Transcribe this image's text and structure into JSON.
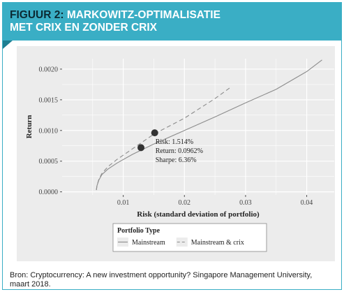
{
  "header": {
    "figure_label": "FIGUUR 2:",
    "title_line1": "MARKOWITZ-OPTIMALISATIE",
    "title_line2": "MET CRIX EN ZONDER CRIX"
  },
  "source": "Bron: Cryptocurrency: A new investment opportunity? Singapore Management University, maart 2018.",
  "colors": {
    "banner": "#3aaec5",
    "banner_dark": "#1f7f92",
    "figure_label": "#0b2a33",
    "plot_bg": "#ececec",
    "grid": "#ffffff",
    "series": "#8c8c8c",
    "point": "#333333"
  },
  "chart_data": {
    "type": "line",
    "xlabel": "Risk (standard deviation of portfolio)",
    "ylabel": "Return",
    "xlim": [
      0.0,
      0.0445
    ],
    "ylim": [
      -5e-05,
      0.00217
    ],
    "xticks": [
      0.01,
      0.02,
      0.03,
      0.04
    ],
    "xtick_labels": [
      "0.01",
      "0.02",
      "0.03",
      "0.04"
    ],
    "yticks": [
      0.0,
      0.0005,
      0.001,
      0.0015,
      0.002
    ],
    "ytick_labels": [
      "0.0000",
      "0.0005",
      "0.0010",
      "0.0015",
      "0.0020"
    ],
    "grid": true,
    "legend": {
      "title": "Portfolio Type",
      "position": "bottom"
    },
    "series": [
      {
        "name": "Mainstream",
        "style": "solid",
        "x": [
          0.0056,
          0.0057,
          0.006,
          0.0065,
          0.0075,
          0.009,
          0.0115,
          0.015,
          0.02,
          0.025,
          0.03,
          0.035,
          0.04,
          0.0425
        ],
        "y": [
          3e-05,
          0.0001,
          0.00019,
          0.00028,
          0.00037,
          0.00047,
          0.00061,
          0.00078,
          0.001,
          0.00122,
          0.00145,
          0.00167,
          0.00196,
          0.00215
        ]
      },
      {
        "name": "Mainstream & crix",
        "style": "dashed",
        "x": [
          0.0056,
          0.0057,
          0.006,
          0.0065,
          0.0075,
          0.009,
          0.0115,
          0.015,
          0.02,
          0.025,
          0.0275
        ],
        "y": [
          3e-05,
          0.0001,
          0.0002,
          0.0003,
          0.00041,
          0.00053,
          0.0007,
          0.00094,
          0.0012,
          0.00152,
          0.0017
        ]
      }
    ],
    "points": [
      {
        "x": 0.0129,
        "y": 0.00072
      },
      {
        "x": 0.01514,
        "y": 0.000962
      }
    ],
    "annotation": [
      "Risk: 1.514%",
      "Return: 0.0962%",
      "Sharpe: 6.36%"
    ]
  }
}
